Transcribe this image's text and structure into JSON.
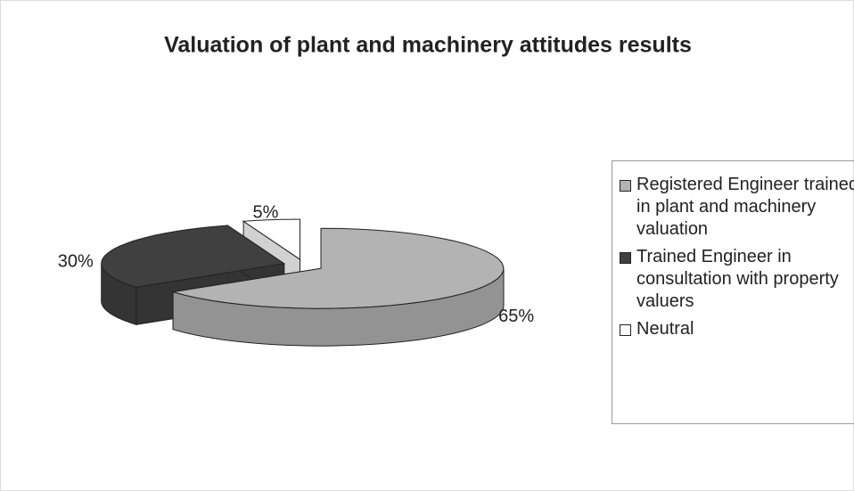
{
  "chart_data": {
    "type": "pie",
    "title": "Valuation of plant and machinery attitudes results",
    "categories": [
      "Registered Engineer trained in plant and machinery valuation",
      "Trained Engineer in consultation with property valuers",
      "Neutral"
    ],
    "values": [
      65,
      30,
      5
    ],
    "value_labels": [
      "65%",
      "30%",
      "5%"
    ],
    "colors": [
      "#b3b3b3",
      "#404040",
      "#ffffff"
    ],
    "legend": "right"
  }
}
